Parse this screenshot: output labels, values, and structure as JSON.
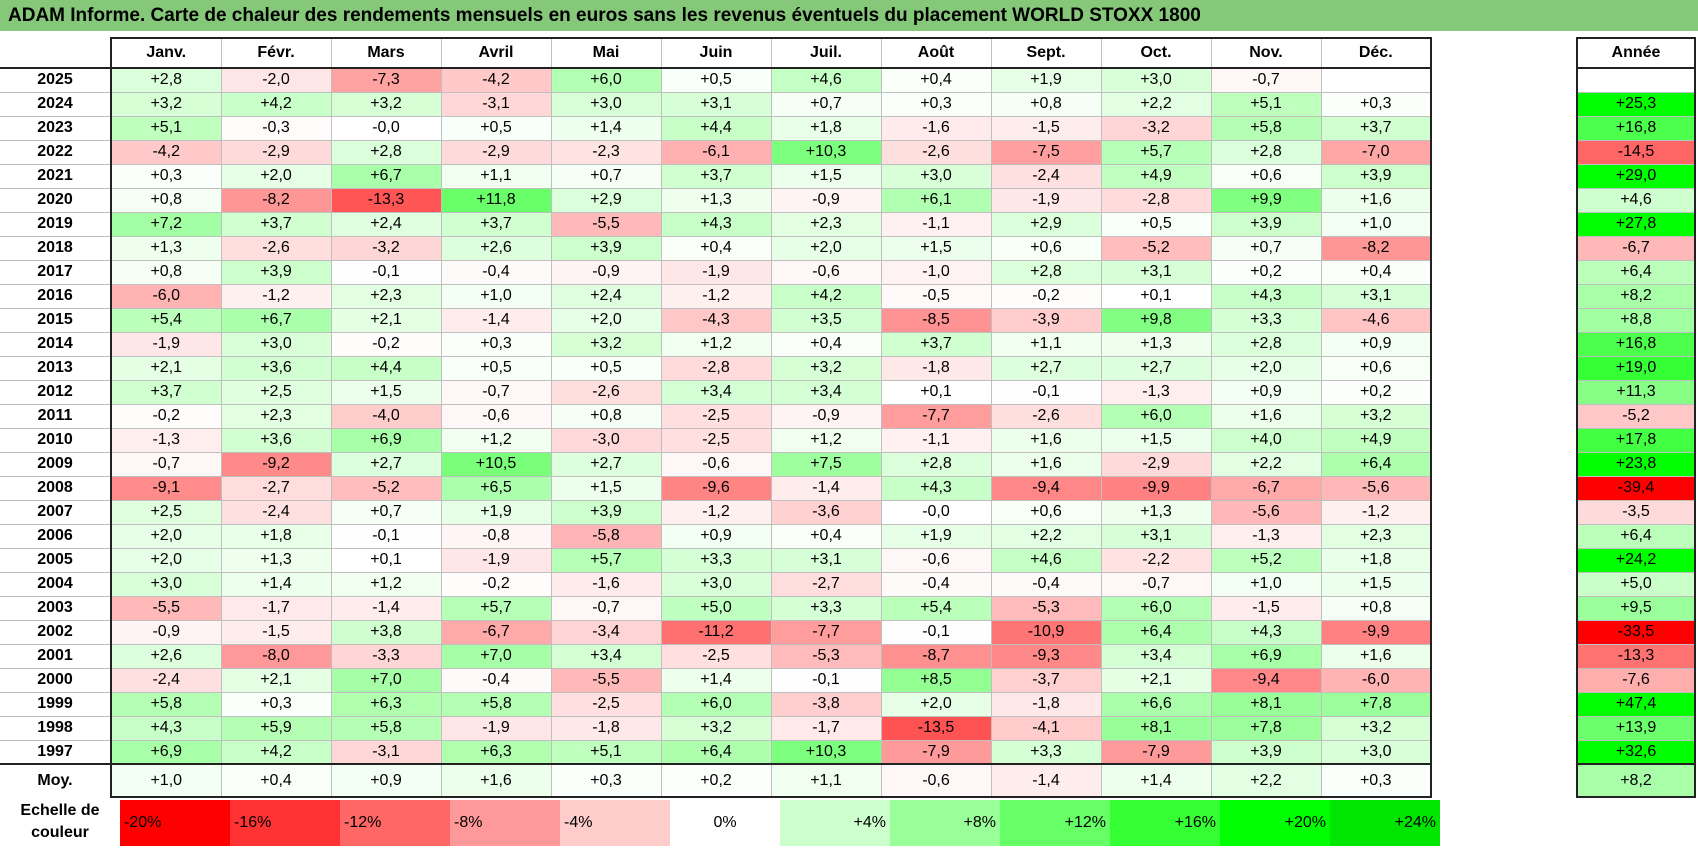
{
  "title": "ADAM Informe. Carte de chaleur des rendements mensuels en euros sans les revenus éventuels du placement WORLD STOXX 1800",
  "chart_data": {
    "type": "heatmap",
    "title": "ADAM Informe. Carte de chaleur des rendements mensuels en euros sans les revenus éventuels du placement WORLD STOXX 1800",
    "months": [
      "Janv.",
      "Févr.",
      "Mars",
      "Avril",
      "Mai",
      "Juin",
      "Juil.",
      "Août",
      "Sept.",
      "Oct.",
      "Nov.",
      "Déc."
    ],
    "year_column_label": "Année",
    "rows": [
      {
        "year": "2025",
        "values": [
          "+2,8",
          "-2,0",
          "-7,3",
          "-4,2",
          "+6,0",
          "+0,5",
          "+4,6",
          "+0,4",
          "+1,9",
          "+3,0",
          "-0,7",
          ""
        ],
        "annual": ""
      },
      {
        "year": "2024",
        "values": [
          "+3,2",
          "+4,2",
          "+3,2",
          "-3,1",
          "+3,0",
          "+3,1",
          "+0,7",
          "+0,3",
          "+0,8",
          "+2,2",
          "+5,1",
          "+0,3"
        ],
        "annual": "+25,3"
      },
      {
        "year": "2023",
        "values": [
          "+5,1",
          "-0,3",
          "-0,0",
          "+0,5",
          "+1,4",
          "+4,4",
          "+1,8",
          "-1,6",
          "-1,5",
          "-3,2",
          "+5,8",
          "+3,7"
        ],
        "annual": "+16,8"
      },
      {
        "year": "2022",
        "values": [
          "-4,2",
          "-2,9",
          "+2,8",
          "-2,9",
          "-2,3",
          "-6,1",
          "+10,3",
          "-2,6",
          "-7,5",
          "+5,7",
          "+2,8",
          "-7,0"
        ],
        "annual": "-14,5"
      },
      {
        "year": "2021",
        "values": [
          "+0,3",
          "+2,0",
          "+6,7",
          "+1,1",
          "+0,7",
          "+3,7",
          "+1,5",
          "+3,0",
          "-2,4",
          "+4,9",
          "+0,6",
          "+3,9"
        ],
        "annual": "+29,0"
      },
      {
        "year": "2020",
        "values": [
          "+0,8",
          "-8,2",
          "-13,3",
          "+11,8",
          "+2,9",
          "+1,3",
          "-0,9",
          "+6,1",
          "-1,9",
          "-2,8",
          "+9,9",
          "+1,6"
        ],
        "annual": "+4,6"
      },
      {
        "year": "2019",
        "values": [
          "+7,2",
          "+3,7",
          "+2,4",
          "+3,7",
          "-5,5",
          "+4,3",
          "+2,3",
          "-1,1",
          "+2,9",
          "+0,5",
          "+3,9",
          "+1,0"
        ],
        "annual": "+27,8"
      },
      {
        "year": "2018",
        "values": [
          "+1,3",
          "-2,6",
          "-3,2",
          "+2,6",
          "+3,9",
          "+0,4",
          "+2,0",
          "+1,5",
          "+0,6",
          "-5,2",
          "+0,7",
          "-8,2"
        ],
        "annual": "-6,7"
      },
      {
        "year": "2017",
        "values": [
          "+0,8",
          "+3,9",
          "-0,1",
          "-0,4",
          "-0,9",
          "-1,9",
          "-0,6",
          "-1,0",
          "+2,8",
          "+3,1",
          "+0,2",
          "+0,4"
        ],
        "annual": "+6,4"
      },
      {
        "year": "2016",
        "values": [
          "-6,0",
          "-1,2",
          "+2,3",
          "+1,0",
          "+2,4",
          "-1,2",
          "+4,2",
          "-0,5",
          "-0,2",
          "+0,1",
          "+4,3",
          "+3,1"
        ],
        "annual": "+8,2"
      },
      {
        "year": "2015",
        "values": [
          "+5,4",
          "+6,7",
          "+2,1",
          "-1,4",
          "+2,0",
          "-4,3",
          "+3,5",
          "-8,5",
          "-3,9",
          "+9,8",
          "+3,3",
          "-4,6"
        ],
        "annual": "+8,8"
      },
      {
        "year": "2014",
        "values": [
          "-1,9",
          "+3,0",
          "-0,2",
          "+0,3",
          "+3,2",
          "+1,2",
          "+0,4",
          "+3,7",
          "+1,1",
          "+1,3",
          "+2,8",
          "+0,9"
        ],
        "annual": "+16,8"
      },
      {
        "year": "2013",
        "values": [
          "+2,1",
          "+3,6",
          "+4,4",
          "+0,5",
          "+0,5",
          "-2,8",
          "+3,2",
          "-1,8",
          "+2,7",
          "+2,7",
          "+2,0",
          "+0,6"
        ],
        "annual": "+19,0"
      },
      {
        "year": "2012",
        "values": [
          "+3,7",
          "+2,5",
          "+1,5",
          "-0,7",
          "-2,6",
          "+3,4",
          "+3,4",
          "+0,1",
          "-0,1",
          "-1,3",
          "+0,9",
          "+0,2"
        ],
        "annual": "+11,3"
      },
      {
        "year": "2011",
        "values": [
          "-0,2",
          "+2,3",
          "-4,0",
          "-0,6",
          "+0,8",
          "-2,5",
          "-0,9",
          "-7,7",
          "-2,6",
          "+6,0",
          "+1,6",
          "+3,2"
        ],
        "annual": "-5,2"
      },
      {
        "year": "2010",
        "values": [
          "-1,3",
          "+3,6",
          "+6,9",
          "+1,2",
          "-3,0",
          "-2,5",
          "+1,2",
          "-1,1",
          "+1,6",
          "+1,5",
          "+4,0",
          "+4,9"
        ],
        "annual": "+17,8"
      },
      {
        "year": "2009",
        "values": [
          "-0,7",
          "-9,2",
          "+2,7",
          "+10,5",
          "+2,7",
          "-0,6",
          "+7,5",
          "+2,8",
          "+1,6",
          "-2,9",
          "+2,2",
          "+6,4"
        ],
        "annual": "+23,8"
      },
      {
        "year": "2008",
        "values": [
          "-9,1",
          "-2,7",
          "-5,2",
          "+6,5",
          "+1,5",
          "-9,6",
          "-1,4",
          "+4,3",
          "-9,4",
          "-9,9",
          "-6,7",
          "-5,6"
        ],
        "annual": "-39,4"
      },
      {
        "year": "2007",
        "values": [
          "+2,5",
          "-2,4",
          "+0,7",
          "+1,9",
          "+3,9",
          "-1,2",
          "-3,6",
          "-0,0",
          "+0,6",
          "+1,3",
          "-5,6",
          "-1,2"
        ],
        "annual": "-3,5"
      },
      {
        "year": "2006",
        "values": [
          "+2,0",
          "+1,8",
          "-0,1",
          "-0,8",
          "-5,8",
          "+0,9",
          "+0,4",
          "+1,9",
          "+2,2",
          "+3,1",
          "-1,3",
          "+2,3"
        ],
        "annual": "+6,4"
      },
      {
        "year": "2005",
        "values": [
          "+2,0",
          "+1,3",
          "+0,1",
          "-1,9",
          "+5,7",
          "+3,3",
          "+3,1",
          "-0,6",
          "+4,6",
          "-2,2",
          "+5,2",
          "+1,8"
        ],
        "annual": "+24,2"
      },
      {
        "year": "2004",
        "values": [
          "+3,0",
          "+1,4",
          "+1,2",
          "-0,2",
          "-1,6",
          "+3,0",
          "-2,7",
          "-0,4",
          "-0,4",
          "-0,7",
          "+1,0",
          "+1,5"
        ],
        "annual": "+5,0"
      },
      {
        "year": "2003",
        "values": [
          "-5,5",
          "-1,7",
          "-1,4",
          "+5,7",
          "-0,7",
          "+5,0",
          "+3,3",
          "+5,4",
          "-5,3",
          "+6,0",
          "-1,5",
          "+0,8"
        ],
        "annual": "+9,5"
      },
      {
        "year": "2002",
        "values": [
          "-0,9",
          "-1,5",
          "+3,8",
          "-6,7",
          "-3,4",
          "-11,2",
          "-7,7",
          "-0,1",
          "-10,9",
          "+6,4",
          "+4,3",
          "-9,9"
        ],
        "annual": "-33,5"
      },
      {
        "year": "2001",
        "values": [
          "+2,6",
          "-8,0",
          "-3,3",
          "+7,0",
          "+3,4",
          "-2,5",
          "-5,3",
          "-8,7",
          "-9,3",
          "+3,4",
          "+6,9",
          "+1,6"
        ],
        "annual": "-13,3"
      },
      {
        "year": "2000",
        "values": [
          "-2,4",
          "+2,1",
          "+7,0",
          "-0,4",
          "-5,5",
          "+1,4",
          "-0,1",
          "+8,5",
          "-3,7",
          "+2,1",
          "-9,4",
          "-6,0"
        ],
        "annual": "-7,6"
      },
      {
        "year": "1999",
        "values": [
          "+5,8",
          "+0,3",
          "+6,3",
          "+5,8",
          "-2,5",
          "+6,0",
          "-3,8",
          "+2,0",
          "-1,8",
          "+6,6",
          "+8,1",
          "+7,8"
        ],
        "annual": "+47,4"
      },
      {
        "year": "1998",
        "values": [
          "+4,3",
          "+5,9",
          "+5,8",
          "-1,9",
          "-1,8",
          "+3,2",
          "-1,7",
          "-13,5",
          "-4,1",
          "+8,1",
          "+7,8",
          "+3,2"
        ],
        "annual": "+13,9"
      },
      {
        "year": "1997",
        "values": [
          "+6,9",
          "+4,2",
          "-3,1",
          "+6,3",
          "+5,1",
          "+6,4",
          "+10,3",
          "-7,9",
          "+3,3",
          "-7,9",
          "+3,9",
          "+3,0"
        ],
        "annual": "+32,6"
      }
    ],
    "average": {
      "label": "Moy.",
      "values": [
        "+1,0",
        "+0,4",
        "+0,9",
        "+1,6",
        "+0,3",
        "+0,2",
        "+1,1",
        "-0,6",
        "-1,4",
        "+1,4",
        "+2,2",
        "+0,3"
      ],
      "annual": "+8,2"
    },
    "color_scale": {
      "label": "Echelle de couleur",
      "stops": [
        {
          "label": "-20%",
          "value": -20,
          "color": "#ff0000"
        },
        {
          "label": "-16%",
          "value": -16,
          "color": "#ff3333"
        },
        {
          "label": "-12%",
          "value": -12,
          "color": "#ff6666"
        },
        {
          "label": "-8%",
          "value": -8,
          "color": "#ff9999"
        },
        {
          "label": "-4%",
          "value": -4,
          "color": "#ffcccc"
        },
        {
          "label": "0%",
          "value": 0,
          "color": "#ffffff"
        },
        {
          "label": "+4%",
          "value": 4,
          "color": "#ccffcc"
        },
        {
          "label": "+8%",
          "value": 8,
          "color": "#99ff99"
        },
        {
          "label": "+12%",
          "value": 12,
          "color": "#66ff66"
        },
        {
          "label": "+16%",
          "value": 16,
          "color": "#33ff33"
        },
        {
          "label": "+20%",
          "value": 20,
          "color": "#00ff00"
        },
        {
          "label": "+24%",
          "value": 24,
          "color": "#00e600"
        }
      ]
    }
  }
}
